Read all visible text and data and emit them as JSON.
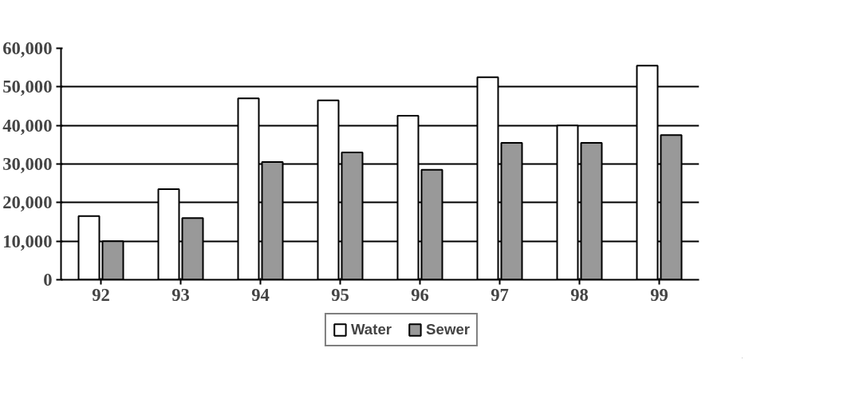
{
  "chart_data": {
    "type": "bar",
    "categories": [
      "92",
      "93",
      "94",
      "95",
      "96",
      "97",
      "98",
      "99"
    ],
    "series": [
      {
        "name": "Water",
        "color": "#ffffff",
        "values": [
          16500,
          23500,
          47000,
          46500,
          42500,
          52500,
          40000,
          55500
        ]
      },
      {
        "name": "Sewer",
        "color": "#999999",
        "values": [
          10000,
          16000,
          30500,
          33000,
          28500,
          35500,
          35500,
          37500
        ]
      }
    ],
    "ylim": [
      0,
      60000
    ],
    "yticks": [
      {
        "value": 0,
        "label": "0"
      },
      {
        "value": 10000,
        "label": "10,000"
      },
      {
        "value": 20000,
        "label": "20,000"
      },
      {
        "value": 30000,
        "label": "30,000"
      },
      {
        "value": 40000,
        "label": "40,000"
      },
      {
        "value": 50000,
        "label": "50,000"
      },
      {
        "value": 60000,
        "label": "60,000"
      }
    ],
    "grid": "y",
    "legend": "bottom"
  }
}
